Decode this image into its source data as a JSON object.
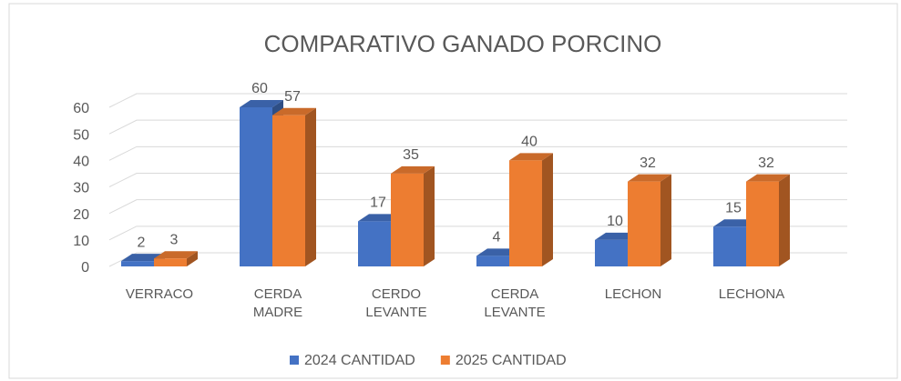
{
  "chart_data": {
    "type": "bar3d",
    "title": "COMPARATIVO GANADO PORCINO",
    "categories": [
      "VERRACO",
      "CERDA MADRE",
      "CERDO LEVANTE",
      "CERDA LEVANTE",
      "LECHON",
      "LECHONA"
    ],
    "series": [
      {
        "name": "2024 CANTIDAD",
        "color": "#4472c4",
        "values": [
          2,
          60,
          17,
          4,
          10,
          15
        ]
      },
      {
        "name": "2025 CANTIDAD",
        "color": "#ed7d31",
        "values": [
          3,
          57,
          35,
          40,
          32,
          32
        ]
      }
    ],
    "ylim": [
      0,
      60
    ],
    "yticks": [
      0,
      10,
      20,
      30,
      40,
      50,
      60
    ],
    "grid": true,
    "legend": "bottom"
  }
}
